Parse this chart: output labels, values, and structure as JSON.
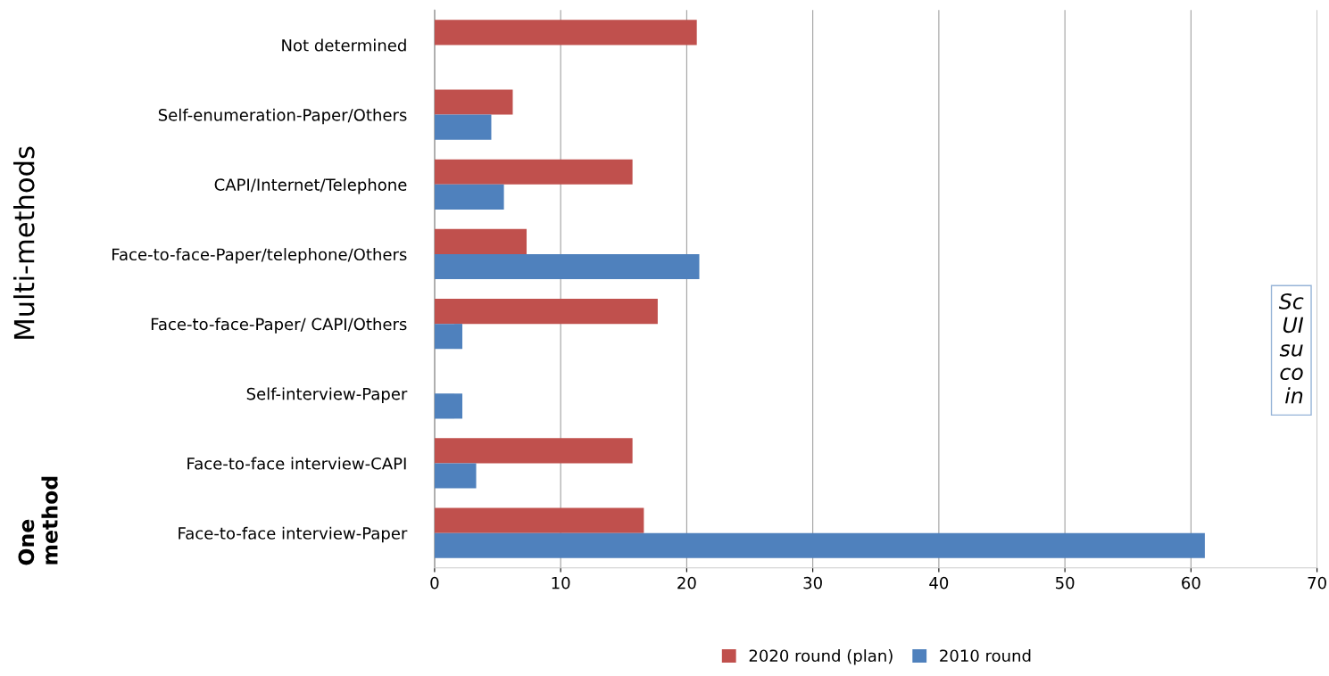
{
  "chart_data": {
    "type": "bar",
    "orientation": "horizontal",
    "categories": [
      "Not determined",
      "Self-enumeration-Paper/Others",
      "CAPI/Internet/Telephone",
      "Face-to-face-Paper/telephone/Others",
      "Face-to-face-Paper/ CAPI/Others",
      "Self-interview-Paper",
      "Face-to-face interview-CAPI",
      "Face-to-face interview-Paper"
    ],
    "series": [
      {
        "name": "2020 round (plan)",
        "color": "#c0504d",
        "values": [
          20.8,
          6.2,
          15.7,
          7.3,
          17.7,
          null,
          15.7,
          16.6
        ]
      },
      {
        "name": "2010 round",
        "color": "#4f81bd",
        "values": [
          null,
          4.5,
          5.5,
          21.0,
          2.2,
          2.2,
          3.3,
          61.1
        ]
      }
    ],
    "xlim": [
      0,
      70
    ],
    "xticks": [
      0,
      10,
      20,
      30,
      40,
      50,
      60,
      70
    ],
    "grid": "x",
    "legend": "bottom",
    "annotations": [
      "Multi-methods",
      "One\nmethod",
      "Sc\nUI\nsu\nco\nin"
    ]
  }
}
